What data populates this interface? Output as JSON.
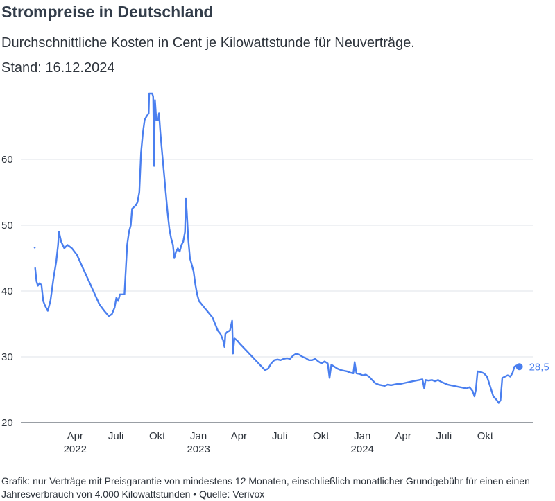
{
  "title": "Strompreise in Deutschland",
  "subtitle": "Durchschnittliche Kosten in Cent je Kilowattstunde für Neuverträge.",
  "stand": "Stand: 16.12.2024",
  "footnote": "Grafik: nur Verträge mit Preisgarantie von mindestens 12 Monaten, einschließlich monatlicher Grundgebühr für einen einen Jahresverbrauch von 4.000 Kilowattstunden • Quelle: Verivox",
  "colors": {
    "line": "#4a7fef",
    "grid": "#dfe3e8",
    "axis": "#333d4a"
  },
  "chart_data": {
    "type": "line",
    "title": "Strompreise in Deutschland",
    "xlabel": "",
    "ylabel": "",
    "ylim": [
      20,
      70
    ],
    "yticks": [
      20,
      30,
      40,
      50,
      60
    ],
    "grid": true,
    "xaxis_labels": [
      {
        "date": "2022-04-01",
        "month": "Apr",
        "year": "2022"
      },
      {
        "date": "2022-07-01",
        "month": "Juli",
        "year": ""
      },
      {
        "date": "2022-10-01",
        "month": "Okt",
        "year": ""
      },
      {
        "date": "2023-01-01",
        "month": "Jan",
        "year": "2023"
      },
      {
        "date": "2023-04-01",
        "month": "Apr",
        "year": ""
      },
      {
        "date": "2023-07-01",
        "month": "Juli",
        "year": ""
      },
      {
        "date": "2023-10-01",
        "month": "Okt",
        "year": ""
      },
      {
        "date": "2024-01-01",
        "month": "Jan",
        "year": "2024"
      },
      {
        "date": "2024-04-01",
        "month": "Apr",
        "year": ""
      },
      {
        "date": "2024-07-01",
        "month": "Juli",
        "year": ""
      },
      {
        "date": "2024-10-01",
        "month": "Okt",
        "year": ""
      }
    ],
    "end_label": "28,5",
    "series": [
      {
        "points": [
          [
            "2022-01-01",
            46.6
          ],
          [
            "2022-01-02",
            43.5
          ],
          [
            "2022-01-05",
            41.5
          ],
          [
            "2022-01-08",
            40.8
          ],
          [
            "2022-01-12",
            41.2
          ],
          [
            "2022-01-16",
            40.9
          ],
          [
            "2022-01-20",
            38.5
          ],
          [
            "2022-01-24",
            37.8
          ],
          [
            "2022-01-30",
            37.0
          ],
          [
            "2022-02-05",
            38.5
          ],
          [
            "2022-02-12",
            42.0
          ],
          [
            "2022-02-18",
            44.5
          ],
          [
            "2022-02-22",
            47.0
          ],
          [
            "2022-02-24",
            49.0
          ],
          [
            "2022-03-01",
            47.5
          ],
          [
            "2022-03-08",
            46.5
          ],
          [
            "2022-03-15",
            47.0
          ],
          [
            "2022-03-25",
            46.5
          ],
          [
            "2022-04-05",
            45.5
          ],
          [
            "2022-04-15",
            44.0
          ],
          [
            "2022-04-25",
            42.5
          ],
          [
            "2022-05-05",
            41.0
          ],
          [
            "2022-05-15",
            39.5
          ],
          [
            "2022-05-25",
            38.0
          ],
          [
            "2022-06-05",
            37.0
          ],
          [
            "2022-06-15",
            36.2
          ],
          [
            "2022-06-22",
            36.5
          ],
          [
            "2022-06-28",
            37.5
          ],
          [
            "2022-07-02",
            39.0
          ],
          [
            "2022-07-06",
            38.5
          ],
          [
            "2022-07-10",
            39.5
          ],
          [
            "2022-07-20",
            39.5
          ],
          [
            "2022-07-26",
            47.0
          ],
          [
            "2022-07-30",
            49.0
          ],
          [
            "2022-08-03",
            50.0
          ],
          [
            "2022-08-06",
            52.5
          ],
          [
            "2022-08-14",
            53.0
          ],
          [
            "2022-08-18",
            53.5
          ],
          [
            "2022-08-22",
            55.0
          ],
          [
            "2022-08-26",
            61.0
          ],
          [
            "2022-08-30",
            64.0
          ],
          [
            "2022-09-03",
            66.0
          ],
          [
            "2022-09-07",
            66.5
          ],
          [
            "2022-09-12",
            67.0
          ],
          [
            "2022-09-13",
            70.0
          ],
          [
            "2022-09-20",
            70.0
          ],
          [
            "2022-09-22",
            69.5
          ],
          [
            "2022-09-24",
            59.0
          ],
          [
            "2022-09-26",
            69.0
          ],
          [
            "2022-09-29",
            66.0
          ],
          [
            "2022-10-03",
            66.0
          ],
          [
            "2022-10-05",
            67.0
          ],
          [
            "2022-10-08",
            64.0
          ],
          [
            "2022-10-12",
            61.0
          ],
          [
            "2022-10-16",
            58.0
          ],
          [
            "2022-10-20",
            55.0
          ],
          [
            "2022-10-24",
            52.0
          ],
          [
            "2022-10-28",
            49.5
          ],
          [
            "2022-11-01",
            48.0
          ],
          [
            "2022-11-05",
            47.0
          ],
          [
            "2022-11-08",
            45.0
          ],
          [
            "2022-11-12",
            46.0
          ],
          [
            "2022-11-16",
            46.5
          ],
          [
            "2022-11-20",
            46.0
          ],
          [
            "2022-11-24",
            47.0
          ],
          [
            "2022-11-28",
            47.5
          ],
          [
            "2022-12-02",
            49.0
          ],
          [
            "2022-12-04",
            54.0
          ],
          [
            "2022-12-06",
            52.0
          ],
          [
            "2022-12-09",
            48.0
          ],
          [
            "2022-12-13",
            45.0
          ],
          [
            "2022-12-17",
            44.0
          ],
          [
            "2022-12-21",
            43.0
          ],
          [
            "2022-12-25",
            41.0
          ],
          [
            "2022-12-29",
            39.5
          ],
          [
            "2023-01-02",
            38.5
          ],
          [
            "2023-01-08",
            38.0
          ],
          [
            "2023-01-14",
            37.5
          ],
          [
            "2023-01-20",
            37.0
          ],
          [
            "2023-01-26",
            36.5
          ],
          [
            "2023-02-01",
            36.0
          ],
          [
            "2023-02-07",
            35.0
          ],
          [
            "2023-02-13",
            34.0
          ],
          [
            "2023-02-19",
            33.5
          ],
          [
            "2023-02-25",
            32.5
          ],
          [
            "2023-02-28",
            31.5
          ],
          [
            "2023-03-02",
            33.5
          ],
          [
            "2023-03-06",
            33.8
          ],
          [
            "2023-03-12",
            34.0
          ],
          [
            "2023-03-17",
            35.5
          ],
          [
            "2023-03-19",
            30.5
          ],
          [
            "2023-03-22",
            32.8
          ],
          [
            "2023-03-28",
            32.5
          ],
          [
            "2023-04-03",
            32.0
          ],
          [
            "2023-04-10",
            31.5
          ],
          [
            "2023-04-17",
            31.0
          ],
          [
            "2023-04-24",
            30.5
          ],
          [
            "2023-05-01",
            30.0
          ],
          [
            "2023-05-08",
            29.5
          ],
          [
            "2023-05-15",
            29.0
          ],
          [
            "2023-05-22",
            28.5
          ],
          [
            "2023-05-29",
            28.0
          ],
          [
            "2023-06-05",
            28.2
          ],
          [
            "2023-06-12",
            29.0
          ],
          [
            "2023-06-19",
            29.5
          ],
          [
            "2023-06-26",
            29.6
          ],
          [
            "2023-07-03",
            29.5
          ],
          [
            "2023-07-10",
            29.7
          ],
          [
            "2023-07-17",
            29.8
          ],
          [
            "2023-07-24",
            29.7
          ],
          [
            "2023-07-31",
            30.2
          ],
          [
            "2023-08-07",
            30.5
          ],
          [
            "2023-08-14",
            30.3
          ],
          [
            "2023-08-21",
            30.0
          ],
          [
            "2023-08-28",
            29.8
          ],
          [
            "2023-09-04",
            29.5
          ],
          [
            "2023-09-11",
            29.5
          ],
          [
            "2023-09-18",
            29.7
          ],
          [
            "2023-09-25",
            29.3
          ],
          [
            "2023-10-02",
            29.0
          ],
          [
            "2023-10-09",
            29.3
          ],
          [
            "2023-10-16",
            29.0
          ],
          [
            "2023-10-20",
            26.8
          ],
          [
            "2023-10-24",
            28.8
          ],
          [
            "2023-10-31",
            28.5
          ],
          [
            "2023-11-07",
            28.2
          ],
          [
            "2023-11-14",
            28.0
          ],
          [
            "2023-11-21",
            27.9
          ],
          [
            "2023-11-28",
            27.8
          ],
          [
            "2023-12-05",
            27.6
          ],
          [
            "2023-12-12",
            27.5
          ],
          [
            "2023-12-15",
            29.2
          ],
          [
            "2023-12-19",
            27.5
          ],
          [
            "2023-12-26",
            27.4
          ],
          [
            "2024-01-02",
            27.2
          ],
          [
            "2024-01-09",
            27.3
          ],
          [
            "2024-01-16",
            27.0
          ],
          [
            "2024-01-23",
            26.5
          ],
          [
            "2024-01-30",
            26.0
          ],
          [
            "2024-02-06",
            25.8
          ],
          [
            "2024-02-13",
            25.7
          ],
          [
            "2024-02-20",
            25.6
          ],
          [
            "2024-02-27",
            25.8
          ],
          [
            "2024-03-05",
            25.7
          ],
          [
            "2024-03-12",
            25.8
          ],
          [
            "2024-03-19",
            25.9
          ],
          [
            "2024-03-26",
            25.9
          ],
          [
            "2024-04-02",
            26.0
          ],
          [
            "2024-04-09",
            26.1
          ],
          [
            "2024-04-16",
            26.2
          ],
          [
            "2024-04-23",
            26.3
          ],
          [
            "2024-04-30",
            26.4
          ],
          [
            "2024-05-07",
            26.5
          ],
          [
            "2024-05-14",
            26.6
          ],
          [
            "2024-05-18",
            25.2
          ],
          [
            "2024-05-21",
            26.5
          ],
          [
            "2024-05-28",
            26.4
          ],
          [
            "2024-06-04",
            26.5
          ],
          [
            "2024-06-11",
            26.3
          ],
          [
            "2024-06-18",
            26.5
          ],
          [
            "2024-06-25",
            26.2
          ],
          [
            "2024-07-02",
            26.0
          ],
          [
            "2024-07-09",
            25.8
          ],
          [
            "2024-07-16",
            25.7
          ],
          [
            "2024-07-23",
            25.6
          ],
          [
            "2024-07-30",
            25.5
          ],
          [
            "2024-08-06",
            25.4
          ],
          [
            "2024-08-13",
            25.3
          ],
          [
            "2024-08-20",
            25.2
          ],
          [
            "2024-08-27",
            25.4
          ],
          [
            "2024-09-03",
            24.8
          ],
          [
            "2024-09-07",
            24.0
          ],
          [
            "2024-09-10",
            25.0
          ],
          [
            "2024-09-14",
            27.8
          ],
          [
            "2024-09-21",
            27.7
          ],
          [
            "2024-09-28",
            27.5
          ],
          [
            "2024-10-05",
            27.0
          ],
          [
            "2024-10-12",
            25.5
          ],
          [
            "2024-10-19",
            24.0
          ],
          [
            "2024-10-26",
            23.5
          ],
          [
            "2024-10-31",
            23.0
          ],
          [
            "2024-11-04",
            23.4
          ],
          [
            "2024-11-08",
            26.8
          ],
          [
            "2024-11-14",
            27.0
          ],
          [
            "2024-11-20",
            27.2
          ],
          [
            "2024-11-26",
            27.0
          ],
          [
            "2024-12-01",
            27.6
          ],
          [
            "2024-12-05",
            28.5
          ],
          [
            "2024-12-10",
            28.7
          ],
          [
            "2024-12-16",
            28.5
          ]
        ]
      }
    ]
  }
}
